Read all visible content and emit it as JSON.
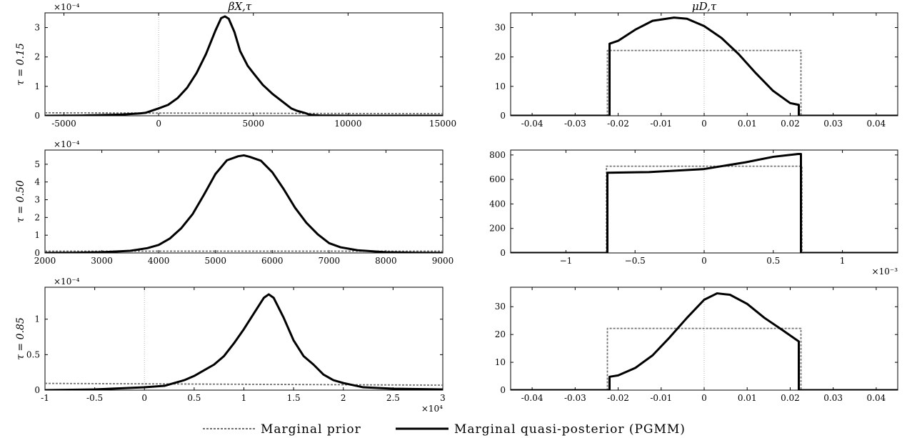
{
  "legend": {
    "prior_label": "Marginal prior",
    "posterior_label": "Marginal quasi-posterior (PGMM)"
  },
  "colors": {
    "posterior": "#000000",
    "prior": "#707070",
    "zero_line": "#b5b5b5"
  },
  "column_titles": [
    "βX,τ",
    "μD,τ"
  ],
  "row_labels": [
    "τ = 0.15",
    "τ = 0.50",
    "τ = 0.85"
  ],
  "chart_data": [
    {
      "type": "line",
      "row": 0,
      "col": 0,
      "title": "βX,τ",
      "xlim": [
        -6000,
        15000
      ],
      "ylim": [
        0,
        3.5
      ],
      "xticks": [
        -5000,
        0,
        5000,
        10000,
        15000
      ],
      "xtick_labels": [
        "-5000",
        "0",
        "5000",
        "10000",
        "15000"
      ],
      "yticks": [
        0,
        1,
        2,
        3
      ],
      "ytick_labels": [
        "0",
        "1",
        "2",
        "3"
      ],
      "y_exponent": "×10⁻⁴",
      "x_exponent": "",
      "zero_line": 0,
      "series": [
        {
          "name": "Marginal prior",
          "style": "dashed",
          "x": [
            -6000,
            15000
          ],
          "y": [
            0.1,
            0.07
          ]
        },
        {
          "name": "Marginal quasi-posterior (PGMM)",
          "style": "solid",
          "x": [
            -6000,
            -4000,
            -2000,
            -1000,
            -700,
            0,
            500,
            1000,
            1500,
            2000,
            2500,
            3000,
            3300,
            3500,
            3700,
            4000,
            4300,
            4700,
            5000,
            5500,
            6000,
            6500,
            7000,
            7300,
            7700,
            8000,
            8500,
            9000,
            10000,
            12000,
            15000
          ],
          "y": [
            0,
            0.01,
            0.04,
            0.08,
            0.1,
            0.25,
            0.37,
            0.6,
            0.95,
            1.45,
            2.1,
            2.9,
            3.32,
            3.38,
            3.3,
            2.85,
            2.2,
            1.7,
            1.45,
            1.05,
            0.75,
            0.5,
            0.25,
            0.17,
            0.1,
            0.03,
            0.01,
            0.005,
            0,
            0,
            0
          ]
        }
      ]
    },
    {
      "type": "line",
      "row": 0,
      "col": 1,
      "title": "μD,τ",
      "xlim": [
        -0.045,
        0.045
      ],
      "ylim": [
        0,
        35
      ],
      "xticks": [
        -0.04,
        -0.03,
        -0.02,
        -0.01,
        0,
        0.01,
        0.02,
        0.03,
        0.04
      ],
      "xtick_labels": [
        "-0.04",
        "-0.03",
        "-0.02",
        "-0.01",
        "0",
        "0.01",
        "0.02",
        "0.03",
        "0.04"
      ],
      "yticks": [
        0,
        10,
        20,
        30
      ],
      "ytick_labels": [
        "0",
        "10",
        "20",
        "30"
      ],
      "y_exponent": "",
      "x_exponent": "",
      "zero_line": 0,
      "series": [
        {
          "name": "Marginal prior",
          "style": "dashed",
          "x": [
            -0.045,
            -0.0225,
            -0.0225,
            0.0225,
            0.0225,
            0.045
          ],
          "y": [
            0,
            0,
            22.2,
            22.2,
            0,
            0
          ]
        },
        {
          "name": "Marginal quasi-posterior (PGMM)",
          "style": "solid",
          "x": [
            -0.045,
            -0.022,
            -0.022,
            -0.02,
            -0.016,
            -0.012,
            -0.007,
            -0.004,
            0,
            0.004,
            0.008,
            0.012,
            0.016,
            0.02,
            0.022,
            0.022,
            0.045
          ],
          "y": [
            0,
            0,
            24.5,
            25.5,
            29.3,
            32.3,
            33.4,
            33,
            30.5,
            26.5,
            21,
            14.5,
            8.5,
            4.3,
            3.7,
            0,
            0
          ]
        }
      ]
    },
    {
      "type": "line",
      "row": 1,
      "col": 0,
      "title": "",
      "xlim": [
        2000,
        9000
      ],
      "ylim": [
        0,
        5.8
      ],
      "xticks": [
        2000,
        3000,
        4000,
        5000,
        6000,
        7000,
        8000,
        9000
      ],
      "xtick_labels": [
        "2000",
        "3000",
        "4000",
        "5000",
        "6000",
        "7000",
        "8000",
        "9000"
      ],
      "yticks": [
        0,
        1,
        2,
        3,
        4,
        5
      ],
      "ytick_labels": [
        "0",
        "1",
        "2",
        "3",
        "4",
        "5"
      ],
      "y_exponent": "×10⁻⁴",
      "x_exponent": "",
      "zero_line": null,
      "series": [
        {
          "name": "Marginal prior",
          "style": "dashed",
          "x": [
            2000,
            9000
          ],
          "y": [
            0.1,
            0.1
          ]
        },
        {
          "name": "Marginal quasi-posterior (PGMM)",
          "style": "solid",
          "x": [
            2000,
            2500,
            3000,
            3500,
            3800,
            4000,
            4200,
            4400,
            4600,
            4800,
            5000,
            5200,
            5400,
            5500,
            5600,
            5800,
            6000,
            6200,
            6400,
            6600,
            6800,
            7000,
            7200,
            7500,
            8000,
            8500,
            9000
          ],
          "y": [
            0,
            0.01,
            0.04,
            0.12,
            0.27,
            0.45,
            0.82,
            1.4,
            2.2,
            3.3,
            4.45,
            5.22,
            5.45,
            5.5,
            5.42,
            5.2,
            4.55,
            3.6,
            2.55,
            1.7,
            1.05,
            0.55,
            0.32,
            0.15,
            0.04,
            0.01,
            0
          ]
        }
      ]
    },
    {
      "type": "line",
      "row": 1,
      "col": 1,
      "title": "",
      "xlim": [
        -1.4,
        1.4
      ],
      "ylim": [
        0,
        840
      ],
      "xticks": [
        -1,
        -0.5,
        0,
        0.5,
        1
      ],
      "xtick_labels": [
        "−1",
        "−0.5",
        "0",
        "0.5",
        "1"
      ],
      "yticks": [
        0,
        200,
        400,
        600,
        800
      ],
      "ytick_labels": [
        "0",
        "200",
        "400",
        "600",
        "800"
      ],
      "y_exponent": "",
      "x_exponent": "×10⁻³",
      "zero_line": 0,
      "series": [
        {
          "name": "Marginal prior",
          "style": "dashed",
          "x": [
            -1.4,
            -0.707,
            -0.707,
            0.707,
            0.707,
            1.4
          ],
          "y": [
            0,
            0,
            708,
            708,
            0,
            0
          ]
        },
        {
          "name": "Marginal quasi-posterior (PGMM)",
          "style": "solid",
          "x": [
            -1.4,
            -0.7,
            -0.7,
            -0.4,
            0,
            0.3,
            0.5,
            0.68,
            0.7,
            0.7,
            1.4
          ],
          "y": [
            0,
            0,
            655,
            660,
            685,
            740,
            785,
            808,
            808,
            0,
            0
          ]
        }
      ]
    },
    {
      "type": "line",
      "row": 2,
      "col": 0,
      "title": "",
      "xlim": [
        -1,
        3
      ],
      "ylim": [
        0,
        1.45
      ],
      "xticks": [
        -1,
        -0.5,
        0,
        0.5,
        1,
        1.5,
        2,
        2.5,
        3
      ],
      "xtick_labels": [
        "-1",
        "-0.5",
        "0",
        "0.5",
        "1",
        "1.5",
        "2",
        "2.5",
        "3"
      ],
      "yticks": [
        0,
        0.5,
        1
      ],
      "ytick_labels": [
        "0",
        "0.5",
        "1"
      ],
      "y_exponent": "×10⁻⁴",
      "x_exponent": "×10⁴",
      "zero_line": 0,
      "series": [
        {
          "name": "Marginal prior",
          "style": "dashed",
          "x": [
            -1,
            3
          ],
          "y": [
            0.095,
            0.07
          ]
        },
        {
          "name": "Marginal quasi-posterior (PGMM)",
          "style": "solid",
          "x": [
            -1,
            -0.5,
            0,
            0.2,
            0.3,
            0.4,
            0.5,
            0.6,
            0.7,
            0.8,
            0.9,
            1,
            1.1,
            1.2,
            1.25,
            1.3,
            1.4,
            1.5,
            1.6,
            1.7,
            1.8,
            1.9,
            2,
            2.2,
            2.5,
            3
          ],
          "y": [
            0,
            0.01,
            0.04,
            0.06,
            0.1,
            0.14,
            0.2,
            0.28,
            0.36,
            0.48,
            0.66,
            0.86,
            1.08,
            1.3,
            1.35,
            1.3,
            1.02,
            0.7,
            0.48,
            0.36,
            0.22,
            0.14,
            0.1,
            0.04,
            0.02,
            0.01
          ]
        }
      ]
    },
    {
      "type": "line",
      "row": 2,
      "col": 1,
      "title": "",
      "xlim": [
        -0.045,
        0.045
      ],
      "ylim": [
        0,
        37
      ],
      "xticks": [
        -0.04,
        -0.03,
        -0.02,
        -0.01,
        0,
        0.01,
        0.02,
        0.03,
        0.04
      ],
      "xtick_labels": [
        "-0.04",
        "-0.03",
        "-0.02",
        "-0.01",
        "0",
        "0.01",
        "0.02",
        "0.03",
        "0.04"
      ],
      "yticks": [
        0,
        10,
        20,
        30
      ],
      "ytick_labels": [
        "0",
        "10",
        "20",
        "30"
      ],
      "y_exponent": "",
      "x_exponent": "",
      "zero_line": 0,
      "series": [
        {
          "name": "Marginal prior",
          "style": "dashed",
          "x": [
            -0.045,
            -0.0225,
            -0.0225,
            0.0225,
            0.0225,
            0.045
          ],
          "y": [
            0,
            0,
            22.2,
            22.2,
            0,
            0
          ]
        },
        {
          "name": "Marginal quasi-posterior (PGMM)",
          "style": "solid",
          "x": [
            -0.045,
            -0.022,
            -0.022,
            -0.02,
            -0.016,
            -0.012,
            -0.008,
            -0.004,
            0,
            0.003,
            0.006,
            0.01,
            0.014,
            0.018,
            0.022,
            0.022,
            0.045
          ],
          "y": [
            0,
            0,
            4.8,
            5.3,
            8,
            12.5,
            19,
            26,
            32.5,
            34.8,
            34.3,
            31,
            26,
            21.8,
            17.5,
            0,
            0
          ]
        }
      ]
    }
  ]
}
